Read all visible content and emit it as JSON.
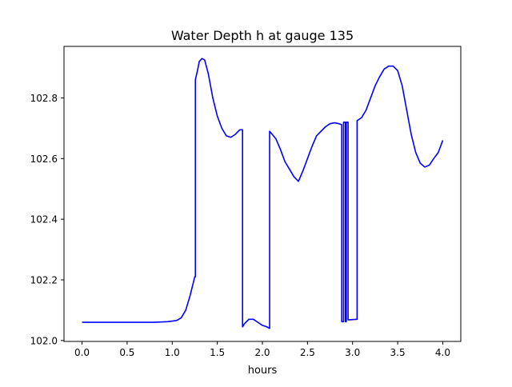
{
  "chart_data": {
    "type": "line",
    "title": "Water Depth h at gauge 135",
    "xlabel": "hours",
    "ylabel": "",
    "xlim": [
      -0.2,
      4.2
    ],
    "ylim": [
      101.997,
      102.97
    ],
    "xticks": [
      0.0,
      0.5,
      1.0,
      1.5,
      2.0,
      2.5,
      3.0,
      3.5,
      4.0
    ],
    "xtick_labels": [
      "0.0",
      "0.5",
      "1.0",
      "1.5",
      "2.0",
      "2.5",
      "3.0",
      "3.5",
      "4.0"
    ],
    "yticks": [
      102.0,
      102.2,
      102.4,
      102.6,
      102.8
    ],
    "ytick_labels": [
      "102.0",
      "102.2",
      "102.4",
      "102.6",
      "102.8"
    ],
    "grid": false,
    "legend": "none",
    "series": [
      {
        "color": "#0000ff",
        "x": [
          0.0,
          0.5,
          0.8,
          0.95,
          1.05,
          1.1,
          1.15,
          1.2,
          1.25,
          1.257,
          1.257,
          1.28,
          1.3,
          1.33,
          1.36,
          1.4,
          1.45,
          1.5,
          1.55,
          1.6,
          1.65,
          1.7,
          1.75,
          1.78,
          1.78,
          1.8,
          1.85,
          1.9,
          1.95,
          2.0,
          2.05,
          2.08,
          2.08,
          2.15,
          2.2,
          2.25,
          2.3,
          2.35,
          2.4,
          2.45,
          2.5,
          2.55,
          2.6,
          2.65,
          2.7,
          2.75,
          2.8,
          2.85,
          2.88,
          2.88,
          2.9,
          2.9,
          2.92,
          2.92,
          2.93,
          2.93,
          2.95,
          2.95,
          3.05,
          3.05,
          3.1,
          3.15,
          3.2,
          3.25,
          3.3,
          3.35,
          3.4,
          3.45,
          3.5,
          3.55,
          3.6,
          3.65,
          3.7,
          3.75,
          3.8,
          3.85,
          3.9,
          3.95,
          4.0
        ],
        "y": [
          102.06,
          102.06,
          102.06,
          102.062,
          102.066,
          102.075,
          102.1,
          102.15,
          102.21,
          102.21,
          102.86,
          102.89,
          102.92,
          102.93,
          102.925,
          102.88,
          102.8,
          102.74,
          102.7,
          102.675,
          102.67,
          102.68,
          102.695,
          102.695,
          102.045,
          102.055,
          102.07,
          102.07,
          102.06,
          102.05,
          102.045,
          102.04,
          102.69,
          102.665,
          102.63,
          102.59,
          102.565,
          102.54,
          102.525,
          102.56,
          102.6,
          102.64,
          102.675,
          102.69,
          102.705,
          102.715,
          102.718,
          102.715,
          102.712,
          102.062,
          102.062,
          102.72,
          102.72,
          102.062,
          102.062,
          102.72,
          102.72,
          102.068,
          102.07,
          102.725,
          102.735,
          102.76,
          102.8,
          102.84,
          102.87,
          102.895,
          102.905,
          102.905,
          102.89,
          102.84,
          102.76,
          102.68,
          102.62,
          102.585,
          102.572,
          102.578,
          102.6,
          102.62,
          102.66
        ]
      }
    ]
  }
}
